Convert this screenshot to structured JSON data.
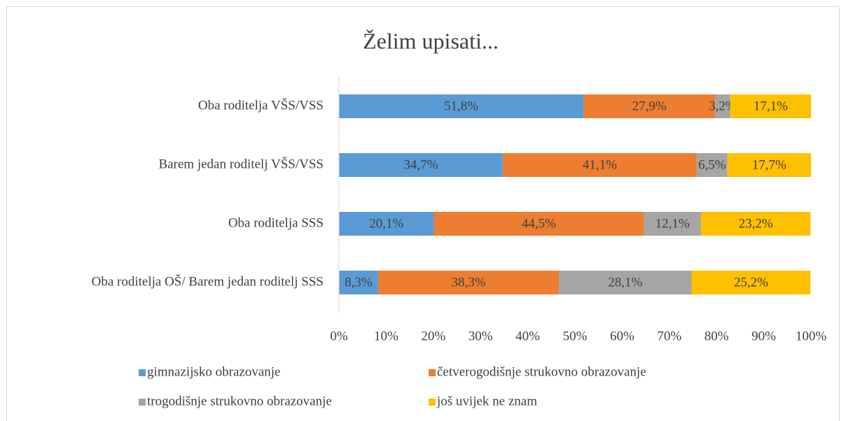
{
  "chart_data": {
    "type": "stacked_barh",
    "title": "Želim upisati...",
    "categories": [
      "Oba roditelja VŠS/VSS",
      "Barem jedan roditelj VŠS/VSS",
      "Oba roditelja SSS",
      "Oba roditelja OŠ/ Barem jedan roditelj SSS"
    ],
    "series": [
      {
        "name": "gimnazijsko obrazovanje",
        "color": "#5b9bd5",
        "values": [
          51.8,
          34.7,
          20.1,
          8.3
        ],
        "value_labels": [
          "51,8%",
          "34,7%",
          "20,1%",
          "8,3%"
        ]
      },
      {
        "name": "četverogodišnje strukovno obrazovanje",
        "color": "#ed7d31",
        "values": [
          27.9,
          41.1,
          44.5,
          38.3
        ],
        "value_labels": [
          "27,9%",
          "41,1%",
          "44,5%",
          "38,3%"
        ]
      },
      {
        "name": "trogodišnje strukovno obrazovanje",
        "color": "#a5a5a5",
        "values": [
          3.2,
          6.5,
          12.1,
          28.1
        ],
        "value_labels": [
          "3,2%",
          "6,5%",
          "12,1%",
          "28,1%"
        ]
      },
      {
        "name": "još uvijek ne znam",
        "color": "#ffc000",
        "values": [
          17.1,
          17.7,
          23.2,
          25.2
        ],
        "value_labels": [
          "17,1%",
          "17,7%",
          "23,2%",
          "25,2%"
        ]
      }
    ],
    "xlim": [
      0,
      100
    ],
    "xticks": [
      {
        "value": 0,
        "label": "0%"
      },
      {
        "value": 10,
        "label": "10%"
      },
      {
        "value": 20,
        "label": "20%"
      },
      {
        "value": 30,
        "label": "30%"
      },
      {
        "value": 40,
        "label": "40%"
      },
      {
        "value": 50,
        "label": "50%"
      },
      {
        "value": 60,
        "label": "60%"
      },
      {
        "value": 70,
        "label": "70%"
      },
      {
        "value": 80,
        "label": "80%"
      },
      {
        "value": 90,
        "label": "90%"
      },
      {
        "value": 100,
        "label": "100%"
      }
    ],
    "grid": false,
    "legend": "bottom"
  }
}
